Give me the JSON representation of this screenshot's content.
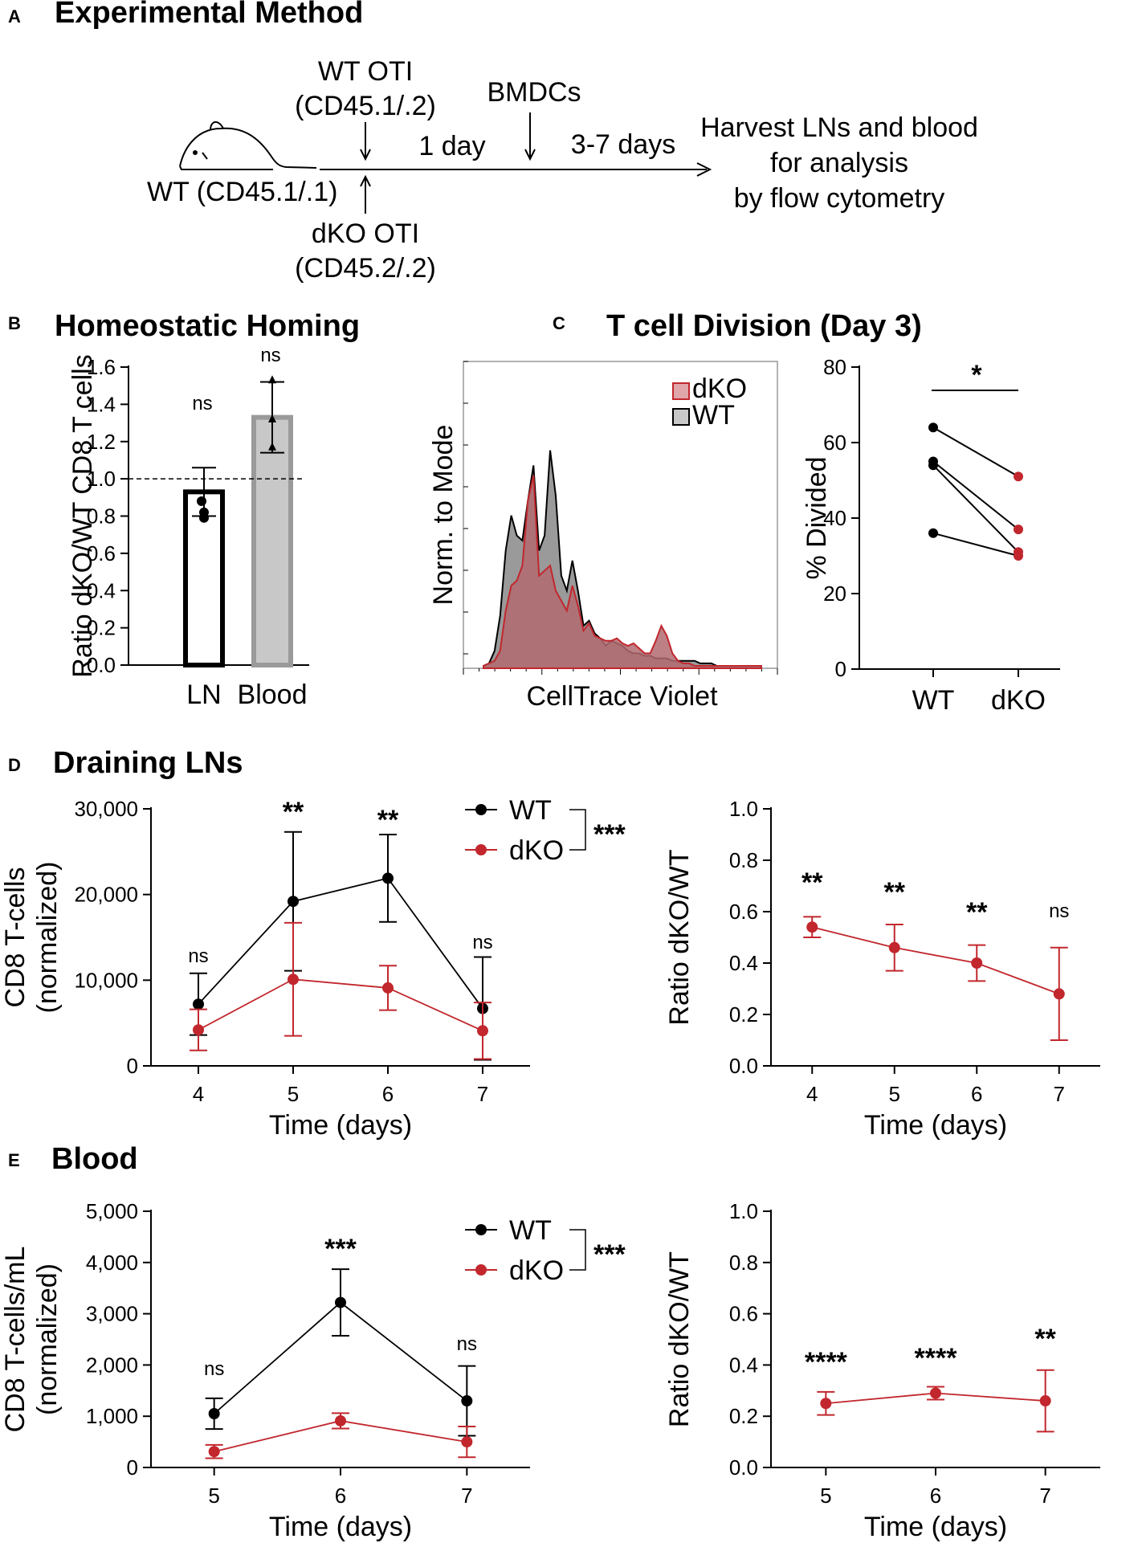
{
  "panel_a": {
    "letter": "A",
    "title": "Experimental Method",
    "mouse_label": "WT (CD45.1/.1)",
    "wt_oti_line1": "WT OTI",
    "wt_oti_line2": "(CD45.1/.2)",
    "dko_oti_line1": "dKO OTI",
    "dko_oti_line2": "(CD45.2/.2)",
    "bmdcs": "BMDCs",
    "interval1": "1 day",
    "interval2": "3-7 days",
    "harvest_line1": "Harvest LNs and blood",
    "harvest_line2": "for analysis",
    "harvest_line3": "by flow cytometry"
  },
  "panel_b": {
    "letter": "B",
    "title": "Homeostatic Homing"
  },
  "panel_c": {
    "letter": "C",
    "title": "T cell Division (Day 3)"
  },
  "panel_d": {
    "letter": "D",
    "title": "Draining LNs"
  },
  "panel_e": {
    "letter": "E",
    "title": "Blood"
  },
  "colors": {
    "wt": "#000000",
    "dko": "#c1272d",
    "dko_fill": "#b06a70",
    "wt_fill": "#9a9a9a",
    "blood_bar": "#c8c8c8",
    "blood_edge": "#9a9a9a"
  },
  "chart_data": [
    {
      "id": "B",
      "type": "bar",
      "ylabel": "Ratio dKO/WT CD8 T cells",
      "categories": [
        "LN",
        "Blood"
      ],
      "values": [
        0.93,
        1.33
      ],
      "errors": [
        0.13,
        0.19
      ],
      "points": [
        [
          0.79,
          0.88,
          0.82
        ],
        [
          1.53,
          1.17,
          1.32
        ]
      ],
      "yticks": [
        "0.0",
        "0.2",
        "0.4",
        "0.6",
        "0.8",
        "1.0",
        "1.2",
        "1.4",
        "1.6"
      ],
      "ylim": [
        0,
        1.6
      ],
      "reference_line": 1.0,
      "annotations": [
        "ns",
        "ns"
      ]
    },
    {
      "id": "C-left",
      "type": "area",
      "xlabel": "CellTrace Violet",
      "ylabel": "Norm. to Mode",
      "legend": [
        "dKO",
        "WT"
      ],
      "x": [
        0,
        0.02,
        0.04,
        0.06,
        0.08,
        0.1,
        0.12,
        0.14,
        0.16,
        0.18,
        0.2,
        0.22,
        0.24,
        0.26,
        0.28,
        0.3,
        0.32,
        0.34,
        0.36,
        0.38,
        0.4,
        0.42,
        0.44,
        0.46,
        0.48,
        0.5,
        0.52,
        0.54,
        0.56,
        0.58,
        0.6,
        0.62,
        0.64,
        0.66,
        0.68,
        0.7,
        0.72,
        0.74,
        0.76,
        0.78,
        0.8,
        0.82,
        0.84,
        0.86,
        0.88,
        0.9,
        0.92,
        0.94,
        0.96,
        0.98,
        1.0
      ],
      "series": [
        {
          "name": "WT",
          "values": [
            0.0,
            0.01,
            0.06,
            0.2,
            0.46,
            0.6,
            0.52,
            0.5,
            0.66,
            0.8,
            0.46,
            0.52,
            0.86,
            0.68,
            0.36,
            0.3,
            0.42,
            0.3,
            0.16,
            0.18,
            0.13,
            0.11,
            0.08,
            0.1,
            0.09,
            0.08,
            0.06,
            0.05,
            0.05,
            0.04,
            0.04,
            0.03,
            0.03,
            0.03,
            0.02,
            0.02,
            0.02,
            0.02,
            0.02,
            0.01,
            0.01,
            0.01,
            0.0,
            0.0,
            0.0,
            0.0,
            0.0,
            0.0,
            0.0,
            0.0,
            0.0
          ]
        },
        {
          "name": "dKO",
          "values": [
            0.0,
            0.01,
            0.02,
            0.06,
            0.22,
            0.32,
            0.34,
            0.4,
            0.66,
            0.76,
            0.36,
            0.38,
            0.4,
            0.3,
            0.26,
            0.22,
            0.32,
            0.24,
            0.14,
            0.17,
            0.12,
            0.11,
            0.1,
            0.1,
            0.11,
            0.09,
            0.08,
            0.09,
            0.07,
            0.05,
            0.05,
            0.1,
            0.16,
            0.12,
            0.05,
            0.02,
            0.01,
            0.01,
            0.0,
            0.0,
            0.0,
            0.0,
            0.0,
            0.0,
            0.0,
            0.0,
            0.0,
            0.0,
            0.0,
            0.0,
            0.0
          ]
        }
      ]
    },
    {
      "id": "C-right",
      "type": "scatter",
      "ylabel": "% Divided",
      "categories": [
        "WT",
        "dKO"
      ],
      "pairs": [
        [
          64,
          51
        ],
        [
          55,
          37
        ],
        [
          54,
          31
        ],
        [
          36,
          30
        ]
      ],
      "yticks": [
        "0",
        "20",
        "40",
        "60",
        "80"
      ],
      "ylim": [
        0,
        80
      ],
      "significance": "*"
    },
    {
      "id": "D-left",
      "type": "line",
      "xlabel": "Time (days)",
      "ylabel": "CD8 T-cells (normalized)",
      "x": [
        4,
        5,
        6,
        7
      ],
      "xlim": [
        3.5,
        7.5
      ],
      "yticks": [
        "0",
        "10,000",
        "20,000",
        "30,000"
      ],
      "ylim": [
        0,
        30000
      ],
      "legend": [
        "WT",
        "dKO"
      ],
      "legend_sig": "***",
      "series": [
        {
          "name": "WT",
          "values": [
            7200,
            19200,
            21900,
            6700
          ],
          "errors": [
            3600,
            8100,
            5100,
            6000
          ]
        },
        {
          "name": "dKO",
          "values": [
            4200,
            10100,
            9100,
            4100
          ],
          "errors": [
            2400,
            6600,
            2600,
            3300
          ]
        }
      ],
      "annotations": [
        "ns",
        "**",
        "**",
        "ns"
      ]
    },
    {
      "id": "D-right",
      "type": "line",
      "xlabel": "Time (days)",
      "ylabel": "Ratio dKO/WT",
      "x": [
        4,
        5,
        6,
        7
      ],
      "xlim": [
        3.5,
        7.5
      ],
      "yticks": [
        "0.0",
        "0.2",
        "0.4",
        "0.6",
        "0.8",
        "1.0"
      ],
      "ylim": [
        0,
        1.0
      ],
      "series": [
        {
          "name": "dKO/WT",
          "values": [
            0.54,
            0.46,
            0.4,
            0.28
          ],
          "errors": [
            0.04,
            0.09,
            0.07,
            0.18
          ]
        }
      ],
      "annotations": [
        "**",
        "**",
        "**",
        "ns"
      ]
    },
    {
      "id": "E-left",
      "type": "line",
      "xlabel": "Time (days)",
      "ylabel": "CD8 T-cells/mL (normalized)",
      "x": [
        5,
        6,
        7
      ],
      "xlim": [
        4.5,
        7.5
      ],
      "yticks": [
        "0",
        "1,000",
        "2,000",
        "3,000",
        "4,000",
        "5,000"
      ],
      "ylim": [
        0,
        5000
      ],
      "legend": [
        "WT",
        "dKO"
      ],
      "legend_sig": "***",
      "series": [
        {
          "name": "WT",
          "values": [
            1050,
            3220,
            1300
          ],
          "errors": [
            300,
            650,
            680
          ]
        },
        {
          "name": "dKO",
          "values": [
            310,
            910,
            500
          ],
          "errors": [
            130,
            150,
            300
          ]
        }
      ],
      "annotations": [
        "ns",
        "***",
        "ns"
      ]
    },
    {
      "id": "E-right",
      "type": "line",
      "xlabel": "Time (days)",
      "ylabel": "Ratio dKO/WT",
      "x": [
        5,
        6,
        7
      ],
      "xlim": [
        4.5,
        7.5
      ],
      "yticks": [
        "0.0",
        "0.2",
        "0.4",
        "0.6",
        "0.8",
        "1.0"
      ],
      "ylim": [
        0,
        1.0
      ],
      "series": [
        {
          "name": "dKO/WT",
          "values": [
            0.25,
            0.29,
            0.26
          ],
          "errors": [
            0.045,
            0.025,
            0.12
          ]
        }
      ],
      "annotations": [
        "****",
        "****",
        "**"
      ]
    }
  ]
}
